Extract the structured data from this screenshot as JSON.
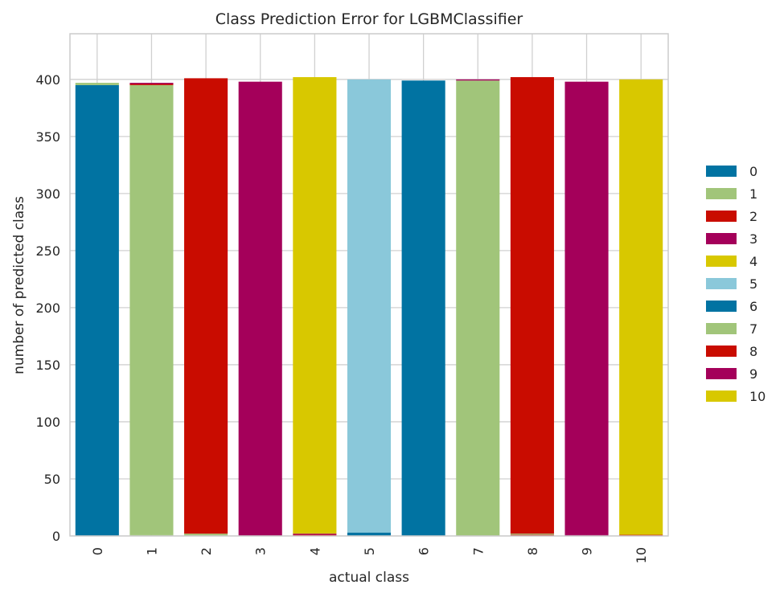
{
  "chart_data": {
    "type": "bar",
    "stacked": true,
    "title": "Class Prediction Error for LGBMClassifier",
    "xlabel": "actual class",
    "ylabel": "number of predicted class",
    "categories": [
      "0",
      "1",
      "2",
      "3",
      "4",
      "5",
      "6",
      "7",
      "8",
      "9",
      "10"
    ],
    "ylim": [
      0,
      440
    ],
    "yticks": [
      0,
      50,
      100,
      150,
      200,
      250,
      300,
      350,
      400
    ],
    "grid": true,
    "legend_position": "right",
    "palette": [
      "#0173a2",
      "#a1c57a",
      "#c90c00",
      "#a4005a",
      "#d8c800",
      "#8ac8da"
    ],
    "series": [
      {
        "name": "0",
        "color": "#0173a2",
        "values": [
          395,
          0,
          0,
          0,
          0,
          3,
          0,
          0,
          0,
          0,
          0
        ]
      },
      {
        "name": "1",
        "color": "#a1c57a",
        "values": [
          2,
          1,
          0,
          0,
          0,
          0,
          0,
          0,
          0,
          0,
          0
        ]
      },
      {
        "name": "2",
        "color": "#c90c00",
        "values": [
          0,
          0,
          0,
          0,
          0,
          0,
          0,
          0,
          1,
          0,
          1
        ]
      },
      {
        "name": "3",
        "color": "#a4005a",
        "values": [
          0,
          0,
          0,
          0,
          0,
          0,
          0,
          0,
          0,
          1,
          0
        ]
      },
      {
        "name": "4",
        "color": "#d8c800",
        "values": [
          0,
          0,
          0,
          0,
          0,
          0,
          0,
          0,
          0,
          0,
          0
        ]
      },
      {
        "name": "5",
        "color": "#8ac8da",
        "values": [
          0,
          0,
          0,
          0,
          0,
          397,
          0,
          0,
          0,
          0,
          0
        ]
      },
      {
        "name": "6",
        "color": "#0173a2",
        "values": [
          0,
          0,
          0,
          0,
          0,
          0,
          399,
          0,
          0,
          0,
          0
        ]
      },
      {
        "name": "7",
        "color": "#a1c57a",
        "values": [
          0,
          394,
          2,
          0,
          0,
          0,
          0,
          399,
          1,
          0,
          0
        ]
      },
      {
        "name": "8",
        "color": "#c90c00",
        "values": [
          0,
          1,
          399,
          0,
          1,
          0,
          0,
          0,
          400,
          0,
          0
        ]
      },
      {
        "name": "9",
        "color": "#a4005a",
        "values": [
          0,
          1,
          0,
          398,
          1,
          0,
          0,
          1,
          0,
          397,
          0
        ]
      },
      {
        "name": "10",
        "color": "#d8c800",
        "values": [
          0,
          0,
          0,
          0,
          400,
          0,
          0,
          0,
          0,
          0,
          399
        ]
      }
    ]
  }
}
